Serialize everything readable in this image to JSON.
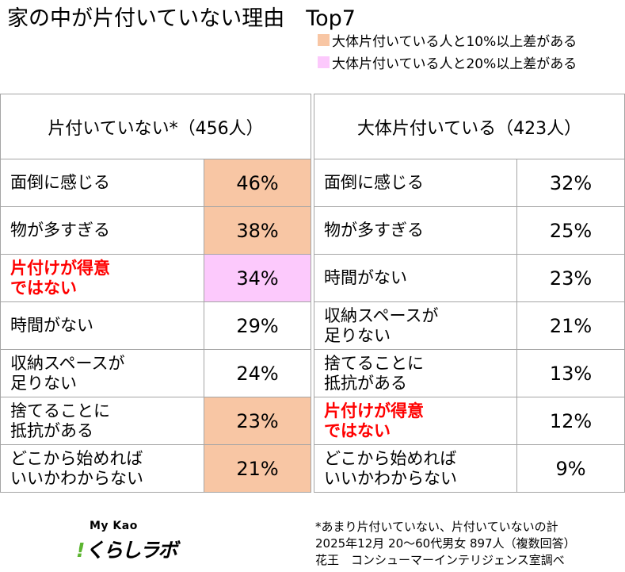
{
  "colors": {
    "diff_10": "#F8C6A4",
    "diff_20": "#FCC9FC",
    "emphasis_text": "#FF0000",
    "border": "#A5A5A5",
    "logo_mark": "#5CB531"
  },
  "chart_data": {
    "type": "table",
    "title": "家の中が片付いていない理由　Top7",
    "legend": [
      {
        "label": "大体片付いている人と10%以上差がある",
        "color": "#F8C6A4"
      },
      {
        "label": "大体片付いている人と20%以上差がある",
        "color": "#FCC9FC"
      }
    ],
    "groups": [
      {
        "header": "片付いていない*（456人）",
        "rows": [
          {
            "label": [
              "面倒に感じる"
            ],
            "value": "46%",
            "highlight": "diff_10"
          },
          {
            "label": [
              "物が多すぎる"
            ],
            "value": "38%",
            "highlight": "diff_10"
          },
          {
            "label": [
              "片付けが得意",
              "ではない"
            ],
            "value": "34%",
            "highlight": "diff_20",
            "emphasis": true
          },
          {
            "label": [
              "時間がない"
            ],
            "value": "29%",
            "highlight": null
          },
          {
            "label": [
              "収納スペースが",
              "足りない"
            ],
            "value": "24%",
            "highlight": null
          },
          {
            "label": [
              "捨てることに",
              "抵抗がある"
            ],
            "value": "23%",
            "highlight": "diff_10"
          },
          {
            "label": [
              "どこから始めれば",
              "いいかわからない"
            ],
            "value": "21%",
            "highlight": "diff_10"
          }
        ]
      },
      {
        "header": "大体片付いている（423人）",
        "rows": [
          {
            "label": [
              "面倒に感じる"
            ],
            "value": "32%",
            "highlight": null
          },
          {
            "label": [
              "物が多すぎる"
            ],
            "value": "25%",
            "highlight": null
          },
          {
            "label": [
              "時間がない"
            ],
            "value": "23%",
            "highlight": null
          },
          {
            "label": [
              "収納スペースが",
              "足りない"
            ],
            "value": "21%",
            "highlight": null
          },
          {
            "label": [
              "捨てることに",
              "抵抗がある"
            ],
            "value": "13%",
            "highlight": null
          },
          {
            "label": [
              "片付けが得意",
              "ではない"
            ],
            "value": "12%",
            "highlight": null,
            "emphasis": true
          },
          {
            "label": [
              "どこから始めれば",
              "いいかわからない"
            ],
            "value": "9%",
            "highlight": null
          }
        ]
      }
    ]
  },
  "footer": {
    "logo_brand": "My Kao",
    "logo_mark": "!",
    "logo_name": "くらしラボ",
    "notes": [
      "*あまり片付いていない、片付いていないの計",
      "2025年12月 20～60代男女 897人（複数回答）",
      "花王　コンシューマーインテリジェンス室調べ"
    ]
  }
}
